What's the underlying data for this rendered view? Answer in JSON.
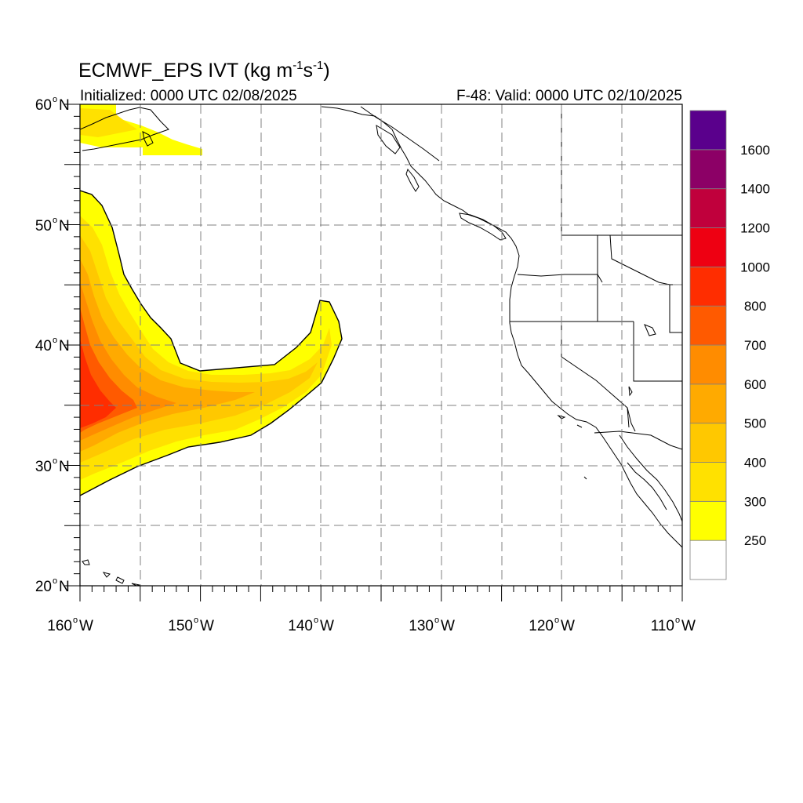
{
  "title": {
    "main": "ECMWF_EPS IVT (kg m",
    "exp1": "-1",
    "mid": "s",
    "exp2": "-1",
    "end": ")"
  },
  "initialized": "Initialized: 0000 UTC 02/08/2025",
  "valid": "F-48: Valid: 0000 UTC 02/10/2025",
  "map": {
    "lon_range": [
      -160,
      -110
    ],
    "lat_range": [
      20,
      60
    ],
    "lat_ticks": [
      {
        "value": 60,
        "num": "60",
        "hemi": "N"
      },
      {
        "value": 50,
        "num": "50",
        "hemi": "N"
      },
      {
        "value": 40,
        "num": "40",
        "hemi": "N"
      },
      {
        "value": 30,
        "num": "30",
        "hemi": "N"
      },
      {
        "value": 20,
        "num": "20",
        "hemi": "N"
      }
    ],
    "lon_ticks": [
      {
        "value": -160,
        "num": "160",
        "hemi": "W"
      },
      {
        "value": -150,
        "num": "150",
        "hemi": "W"
      },
      {
        "value": -140,
        "num": "140",
        "hemi": "W"
      },
      {
        "value": -130,
        "num": "130",
        "hemi": "W"
      },
      {
        "value": -120,
        "num": "120",
        "hemi": "W"
      },
      {
        "value": -110,
        "num": "110",
        "hemi": "W"
      }
    ],
    "grid_lons": [
      -155,
      -150,
      -145,
      -140,
      -135,
      -130,
      -125,
      -120,
      -115
    ],
    "grid_lats": [
      25,
      30,
      35,
      40,
      45,
      50,
      55
    ]
  },
  "colorbar": {
    "colors": [
      "#ffffff",
      "#ffff00",
      "#ffe100",
      "#ffc800",
      "#ffaa00",
      "#ff8c00",
      "#ff5a00",
      "#ff2d00",
      "#ee0012",
      "#c0003c",
      "#8c0066",
      "#5a008c"
    ],
    "labels": [
      "250",
      "300",
      "400",
      "500",
      "600",
      "700",
      "800",
      "1000",
      "1200",
      "1400",
      "1600"
    ]
  },
  "chart_data": {
    "type": "heatmap",
    "variable": "IVT",
    "units": "kg m-1 s-1",
    "levels": [
      250,
      300,
      400,
      500,
      600,
      700,
      800,
      1000,
      1200,
      1400,
      1600
    ],
    "features": [
      {
        "name": "plume",
        "region_lon": [
          -160,
          -138
        ],
        "region_lat": [
          27,
          53
        ],
        "core_lon": -159,
        "core_lat": 35,
        "core_value": 800
      },
      {
        "name": "gulf-of-alaska-patch",
        "region_lon": [
          -160,
          -150
        ],
        "region_lat": [
          55.5,
          59
        ],
        "core_value": 300
      }
    ]
  }
}
